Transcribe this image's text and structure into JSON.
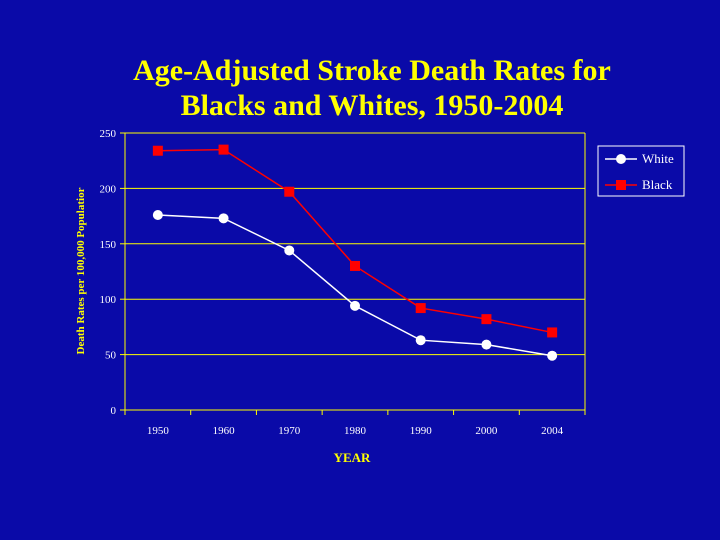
{
  "slide": {
    "title_line1": "Age-Adjusted Stroke Death Rates for",
    "title_line2": "Blacks and Whites, 1950-2004"
  },
  "colors": {
    "background": "#0A0AA8",
    "title": "#FFFF00",
    "axis_and_grid": "#FFFF00",
    "tick_labels": "#FFFFFF",
    "white_series": "#FFFFFF",
    "black_series": "#FF0000"
  },
  "chart_data": {
    "type": "line",
    "title": "Age-Adjusted Stroke Death Rates for Blacks and Whites, 1950-2004",
    "xlabel": "YEAR",
    "ylabel": "Death Rates per 100,000 Populatior",
    "categories": [
      "1950",
      "1960",
      "1970",
      "1980",
      "1990",
      "2000",
      "2004"
    ],
    "ylim": [
      0,
      250
    ],
    "yticks": [
      0,
      50,
      100,
      150,
      200,
      250
    ],
    "grid": true,
    "legend_position": "top-right",
    "series": [
      {
        "name": "White",
        "marker": "circle",
        "color": "#FFFFFF",
        "values": [
          176,
          173,
          144,
          94,
          63,
          59,
          49
        ]
      },
      {
        "name": "Black",
        "marker": "square",
        "color": "#FF0000",
        "values": [
          234,
          235,
          197,
          130,
          92,
          82,
          70
        ]
      }
    ]
  }
}
